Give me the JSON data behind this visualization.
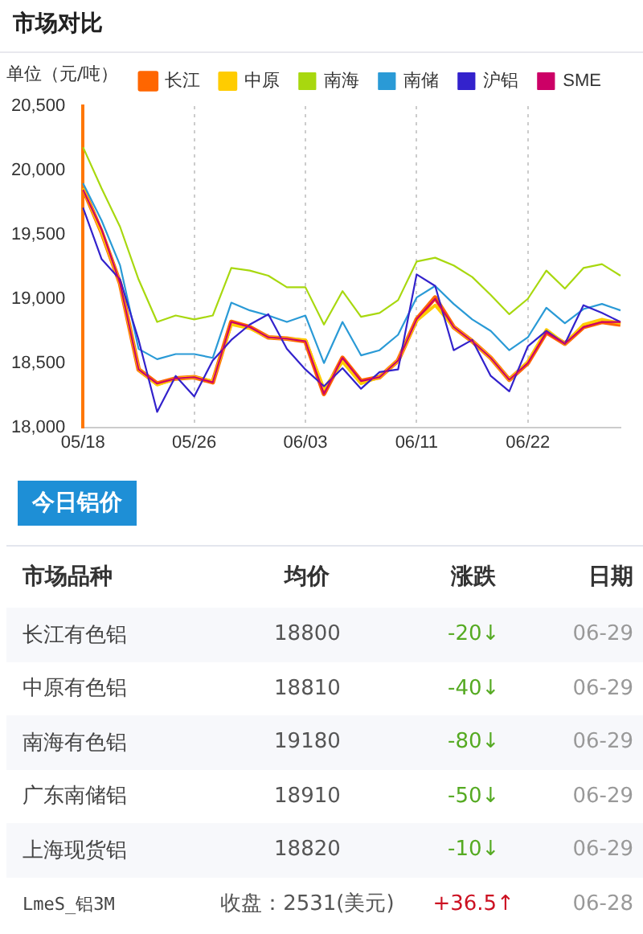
{
  "chart_data": [
    {
      "type": "line",
      "title": "市场对比",
      "ylabel": "单位（元/吨）",
      "categories": [
        "05/18",
        null,
        null,
        null,
        null,
        null,
        "05/26",
        null,
        null,
        null,
        null,
        null,
        "06/03",
        null,
        null,
        null,
        null,
        null,
        "06/11",
        null,
        null,
        null,
        null,
        null,
        "06/22",
        null,
        null,
        null,
        null,
        null
      ],
      "series": [
        {
          "name": "长江",
          "color": "#ff6600",
          "values": [
            19860,
            19520,
            19120,
            18450,
            18340,
            18380,
            18390,
            18350,
            18820,
            18780,
            18700,
            18690,
            18670,
            18260,
            18540,
            18360,
            18390,
            18520,
            18840,
            19010,
            18780,
            18670,
            18540,
            18370,
            18500,
            18740,
            18650,
            18780,
            18820,
            18800
          ]
        },
        {
          "name": "中原",
          "color": "#ffcc00",
          "values": [
            19860,
            19520,
            19120,
            18450,
            18330,
            18380,
            18390,
            18360,
            18800,
            18770,
            18700,
            18690,
            18680,
            18300,
            18510,
            18340,
            18390,
            18520,
            18830,
            18950,
            18780,
            18670,
            18540,
            18370,
            18510,
            18760,
            18650,
            18800,
            18840,
            18810
          ]
        },
        {
          "name": "南海",
          "color": "#a8d80f",
          "values": [
            20180,
            19860,
            19560,
            19150,
            18820,
            18870,
            18840,
            18870,
            19240,
            19220,
            19180,
            19090,
            19090,
            18800,
            19060,
            18860,
            18890,
            18990,
            19290,
            19320,
            19260,
            19170,
            19030,
            18880,
            19000,
            19220,
            19080,
            19240,
            19270,
            19180
          ]
        },
        {
          "name": "南储",
          "color": "#2a9ad6",
          "values": [
            19900,
            19610,
            19260,
            18610,
            18530,
            18570,
            18570,
            18540,
            18970,
            18910,
            18870,
            18820,
            18870,
            18500,
            18820,
            18560,
            18600,
            18720,
            19010,
            19100,
            18960,
            18840,
            18750,
            18600,
            18700,
            18930,
            18810,
            18920,
            18960,
            18910
          ]
        },
        {
          "name": "沪铝",
          "color": "#3322cc",
          "values": [
            19710,
            19310,
            19150,
            18680,
            18120,
            18400,
            18240,
            18520,
            18680,
            18800,
            18880,
            18610,
            18450,
            18320,
            18460,
            18300,
            18430,
            18450,
            19190,
            19100,
            18600,
            18680,
            18400,
            18280,
            18630,
            18750,
            18650,
            18950,
            18890,
            18820
          ]
        },
        {
          "name": "SME",
          "color": "#cc0066",
          "values": [
            19850,
            19540,
            19120,
            18450,
            18340,
            18380,
            18390,
            18350,
            18820,
            18780,
            18700,
            18690,
            18670,
            18260,
            18540,
            18360,
            18390,
            18520,
            18840,
            19000,
            18780,
            18670,
            18540,
            18370,
            18500,
            18740,
            18650,
            18780,
            18820,
            18820
          ]
        }
      ],
      "ylim": [
        18000,
        20500
      ],
      "yticks": [
        {
          "value": 18000,
          "label": "18,000"
        },
        {
          "value": 18500,
          "label": "18,500"
        },
        {
          "value": 19000,
          "label": "19,000"
        },
        {
          "value": 19500,
          "label": "19,500"
        },
        {
          "value": 20000,
          "label": "20,000"
        },
        {
          "value": 20500,
          "label": "20,500"
        }
      ],
      "grid": "x",
      "legend": "top",
      "marker": "none"
    },
    {
      "type": "other",
      "title": "今日铝价",
      "annotations": [
        "市场品种",
        "均价",
        "涨跌",
        "日期",
        "长江有色铝",
        "18800",
        "-20↓",
        "06-29",
        "中原有色铝",
        "18810",
        "-40↓",
        "06-29",
        "南海有色铝",
        "19180",
        "-80↓",
        "06-29",
        "广东南储铝",
        "18910",
        "-50↓",
        "06-29",
        "上海现货铝",
        "18820",
        "-10↓",
        "06-29",
        "LmeS_铝3M",
        "收盘：2531(美元)",
        "+36.5↑",
        "06-28"
      ],
      "colors": [
        "#333333",
        "#333333",
        "#333333",
        "#333333",
        "#444444",
        "#555555",
        "#55aa22",
        "#999999",
        "#444444",
        "#555555",
        "#55aa22",
        "#999999",
        "#444444",
        "#555555",
        "#55aa22",
        "#999999",
        "#444444",
        "#555555",
        "#55aa22",
        "#999999",
        "#444444",
        "#555555",
        "#55aa22",
        "#999999",
        "#444444",
        "#555555",
        "#cc1122",
        "#999999"
      ]
    }
  ]
}
